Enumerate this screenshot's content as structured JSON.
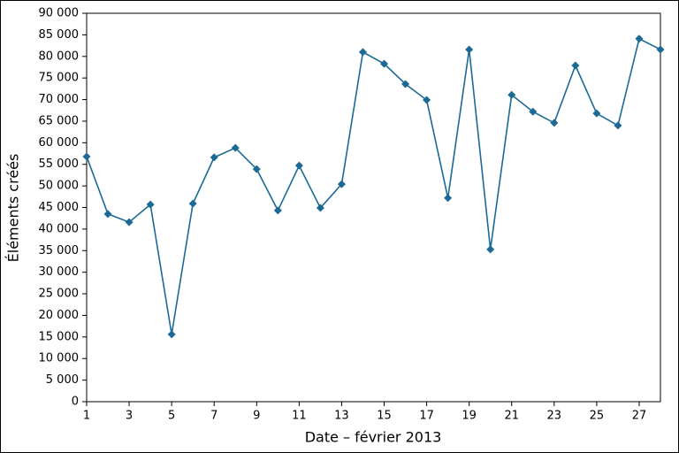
{
  "chart_data": {
    "type": "line",
    "x_label": "Date – février 2013",
    "y_label": "Éléments créés",
    "x": [
      1,
      2,
      3,
      4,
      5,
      6,
      7,
      8,
      9,
      10,
      11,
      12,
      13,
      14,
      15,
      16,
      17,
      18,
      19,
      20,
      21,
      22,
      23,
      24,
      25,
      26,
      27,
      28
    ],
    "series": [
      {
        "color": "#1b6a96",
        "values": [
          56800,
          43500,
          41600,
          45700,
          15600,
          45900,
          56600,
          58800,
          53900,
          44300,
          54700,
          44900,
          50400,
          81000,
          78300,
          73600,
          69900,
          47200,
          81600,
          35300,
          71100,
          67200,
          64600,
          77900,
          66800,
          64000,
          84100,
          81600
        ]
      }
    ],
    "xlim": [
      1,
      28
    ],
    "xticks": [
      1,
      3,
      5,
      7,
      9,
      11,
      13,
      15,
      17,
      19,
      21,
      23,
      25,
      27
    ],
    "ylim": [
      0,
      90000
    ],
    "yticks": [
      0,
      {
        "value": 5000,
        "label": "5 000"
      },
      {
        "value": 10000,
        "label": "10 000"
      },
      {
        "value": 15000,
        "label": "15 000"
      },
      {
        "value": 20000,
        "label": "20 000"
      },
      {
        "value": 25000,
        "label": "25 000"
      },
      {
        "value": 30000,
        "label": "30 000"
      },
      {
        "value": 35000,
        "label": "35 000"
      },
      {
        "value": 40000,
        "label": "40 000"
      },
      {
        "value": 45000,
        "label": "45 000"
      },
      {
        "value": 50000,
        "label": "50 000"
      },
      {
        "value": 55000,
        "label": "55 000"
      },
      {
        "value": 60000,
        "label": "60 000"
      },
      {
        "value": 65000,
        "label": "65 000"
      },
      {
        "value": 70000,
        "label": "70 000"
      },
      {
        "value": 75000,
        "label": "75 000"
      },
      {
        "value": 80000,
        "label": "80 000"
      },
      {
        "value": 85000,
        "label": "85 000"
      },
      {
        "value": 90000,
        "label": "90 000"
      }
    ]
  }
}
